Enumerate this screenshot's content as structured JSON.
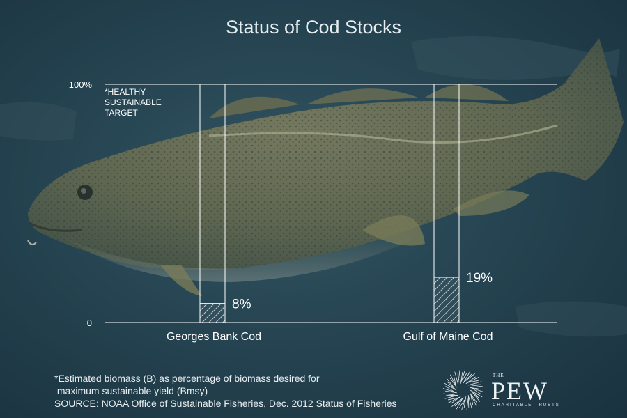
{
  "chart_data": {
    "type": "bar",
    "title": "Status of Cod Stocks",
    "categories": [
      "Georges Bank Cod",
      "Gulf of Maine Cod"
    ],
    "values": [
      8,
      19
    ],
    "value_labels": [
      "8%",
      "19%"
    ],
    "ylim": [
      0,
      100
    ],
    "yticks": [
      {
        "value": 100,
        "label": "100%"
      },
      {
        "value": 0,
        "label": "0"
      }
    ],
    "target_label": "*HEALTHY\nSUSTAINABLE\nTARGET",
    "xlabel": "",
    "ylabel": "",
    "grid": false,
    "colors": {
      "bar_stroke": "#ffffff",
      "hatch": "#ffffff",
      "axis": "#ffffff"
    }
  },
  "footnote": {
    "line1": "*Estimated biomass (B) as percentage of biomass desired for",
    "line2": " maximum sustainable yield (Bmsy)",
    "source": "SOURCE: NOAA Office of Sustainable Fisheries, Dec. 2012 Status of Fisheries"
  },
  "logo": {
    "the": "THE",
    "name": "PEW",
    "subtitle": "CHARITABLE TRUSTS"
  }
}
